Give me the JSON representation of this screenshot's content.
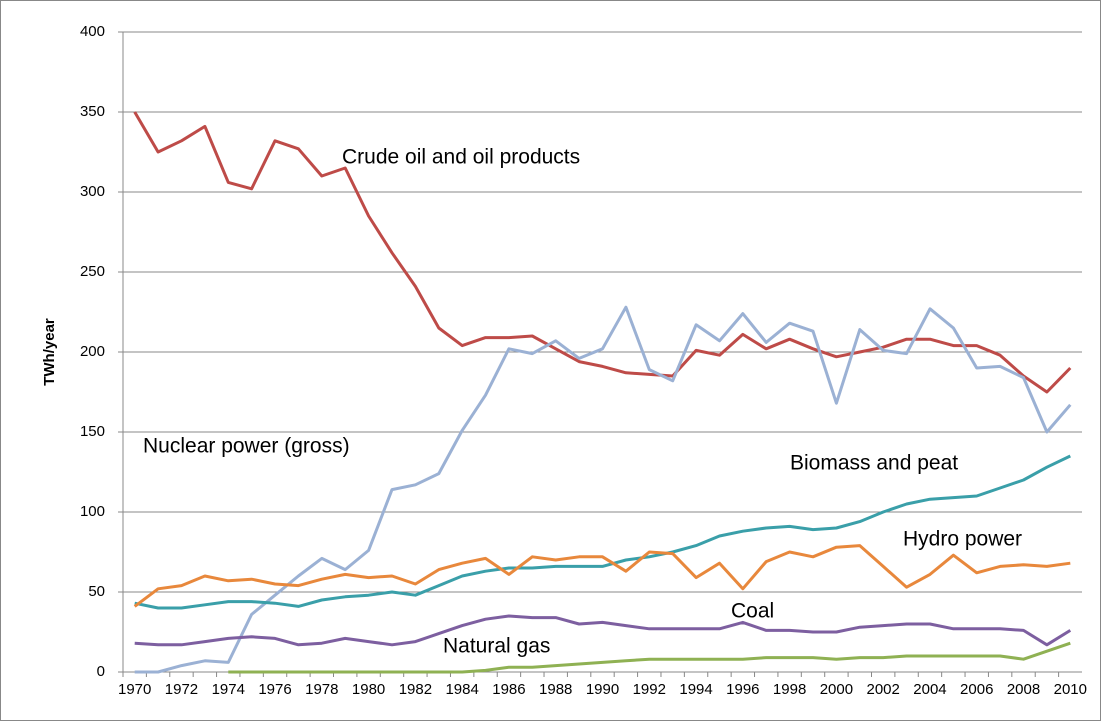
{
  "chart_data": {
    "type": "line",
    "y_label": "TWh/year",
    "categories": [
      "1970",
      null,
      "1972",
      null,
      "1974",
      null,
      "1976",
      null,
      "1978",
      null,
      "1980",
      null,
      "1982",
      null,
      "1984",
      null,
      "1986",
      null,
      "1988",
      null,
      "1990",
      null,
      "1992",
      null,
      "1994",
      null,
      "1996",
      null,
      "1998",
      null,
      "2000",
      null,
      "2002",
      null,
      "2004",
      null,
      "2006",
      null,
      "2008",
      null,
      "2010"
    ],
    "ylim": [
      0,
      400
    ],
    "yticks": [
      0,
      50,
      100,
      150,
      200,
      250,
      300,
      350,
      400
    ],
    "grid": true,
    "series": [
      {
        "name": "Crude oil and oil products",
        "color": "#be4b48",
        "values": [
          350,
          325,
          332,
          341,
          306,
          302,
          332,
          327,
          310,
          315,
          285,
          262,
          241,
          215,
          204,
          209,
          209,
          210,
          202,
          194,
          191,
          187,
          186,
          185,
          201,
          198,
          211,
          202,
          208,
          202,
          197,
          200,
          203,
          208,
          208,
          204,
          204,
          198,
          185,
          175,
          190
        ]
      },
      {
        "name": "Nuclear power (gross)",
        "color": "#9bb1d4",
        "values": [
          0,
          0,
          4,
          7,
          6,
          36,
          48,
          60,
          71,
          64,
          76,
          114,
          117,
          124,
          151,
          173,
          202,
          199,
          207,
          196,
          202,
          228,
          189,
          182,
          217,
          207,
          224,
          206,
          218,
          213,
          168,
          214,
          201,
          199,
          227,
          215,
          190,
          191,
          184,
          150,
          167
        ]
      },
      {
        "name": "Biomass and peat",
        "color": "#3a9fa9",
        "values": [
          43,
          40,
          40,
          42,
          44,
          44,
          43,
          41,
          45,
          47,
          48,
          50,
          48,
          54,
          60,
          63,
          65,
          65,
          66,
          66,
          66,
          70,
          72,
          75,
          79,
          85,
          88,
          90,
          91,
          89,
          90,
          94,
          100,
          105,
          108,
          109,
          110,
          115,
          120,
          128,
          135
        ]
      },
      {
        "name": "Hydro power",
        "color": "#e8883c",
        "values": [
          41,
          52,
          54,
          60,
          57,
          58,
          55,
          54,
          58,
          61,
          59,
          60,
          55,
          64,
          68,
          71,
          61,
          72,
          70,
          72,
          72,
          63,
          75,
          74,
          59,
          68,
          52,
          69,
          75,
          72,
          78,
          79,
          66,
          53,
          61,
          73,
          62,
          66,
          67,
          66,
          68
        ]
      },
      {
        "name": "Coal",
        "color": "#7d5fa0",
        "values": [
          18,
          17,
          17,
          19,
          21,
          22,
          21,
          17,
          18,
          21,
          19,
          17,
          19,
          24,
          29,
          33,
          35,
          34,
          34,
          30,
          31,
          29,
          27,
          27,
          27,
          27,
          31,
          26,
          26,
          25,
          25,
          28,
          29,
          30,
          30,
          27,
          27,
          27,
          26,
          17,
          26
        ]
      },
      {
        "name": "Natural gas",
        "color": "#8fb153",
        "values": [
          null,
          null,
          null,
          null,
          0,
          0,
          0,
          0,
          0,
          0,
          0,
          0,
          0,
          0,
          0,
          1,
          3,
          3,
          4,
          5,
          6,
          7,
          8,
          8,
          8,
          8,
          8,
          9,
          9,
          9,
          8,
          9,
          9,
          10,
          10,
          10,
          10,
          10,
          8,
          13,
          18
        ]
      }
    ]
  }
}
